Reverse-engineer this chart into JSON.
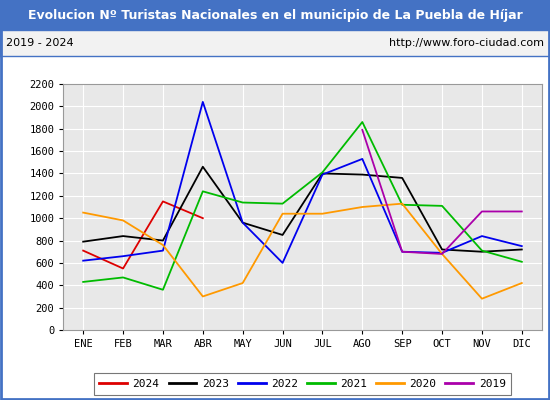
{
  "title": "Evolucion Nº Turistas Nacionales en el municipio de La Puebla de Híjar",
  "subtitle_left": "2019 - 2024",
  "subtitle_right": "http://www.foro-ciudad.com",
  "months": [
    "ENE",
    "FEB",
    "MAR",
    "ABR",
    "MAY",
    "JUN",
    "JUL",
    "AGO",
    "SEP",
    "OCT",
    "NOV",
    "DIC"
  ],
  "ylim": [
    0,
    2200
  ],
  "yticks": [
    0,
    200,
    400,
    600,
    800,
    1000,
    1200,
    1400,
    1600,
    1800,
    2000,
    2200
  ],
  "series": {
    "2024": {
      "color": "#dd0000",
      "data": [
        710,
        550,
        1150,
        1000,
        null,
        null,
        null,
        null,
        null,
        null,
        null,
        null
      ]
    },
    "2023": {
      "color": "#000000",
      "data": [
        790,
        840,
        800,
        1460,
        960,
        850,
        1400,
        1390,
        1360,
        720,
        700,
        720
      ]
    },
    "2022": {
      "color": "#0000ee",
      "data": [
        620,
        660,
        710,
        2040,
        960,
        600,
        1390,
        1530,
        700,
        690,
        840,
        750
      ]
    },
    "2021": {
      "color": "#00bb00",
      "data": [
        430,
        470,
        360,
        1240,
        1140,
        1130,
        1410,
        1860,
        1120,
        1110,
        710,
        610
      ]
    },
    "2020": {
      "color": "#ff9900",
      "data": [
        1050,
        980,
        760,
        300,
        420,
        1040,
        1040,
        1100,
        1130,
        680,
        280,
        420
      ]
    },
    "2019": {
      "color": "#aa00aa",
      "data": [
        null,
        null,
        null,
        null,
        null,
        null,
        null,
        1790,
        700,
        680,
        1060,
        1060
      ]
    }
  },
  "legend_order": [
    "2024",
    "2023",
    "2022",
    "2021",
    "2020",
    "2019"
  ],
  "title_bg_color": "#4472c4",
  "title_text_color": "#ffffff",
  "plot_bg_color": "#e8e8e8",
  "grid_color": "#ffffff",
  "subtitle_bg_color": "#f2f2f2",
  "border_color": "#4472c4",
  "fig_width": 5.5,
  "fig_height": 4.0,
  "dpi": 100
}
